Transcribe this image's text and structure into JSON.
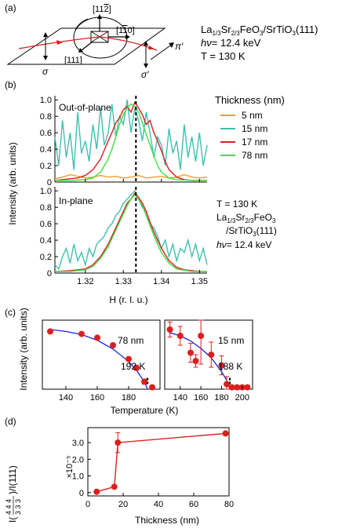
{
  "panel_labels": [
    "(a)",
    "(b)",
    "(c)",
    "(d)"
  ],
  "geometry_panel": {
    "vector_labels": [
      "[11̅2̅]",
      "[11̅0]",
      "[111]"
    ],
    "vector_label_top": "[11",
    "vector_label_top_bar": "2",
    "vector_label_top_close": "]",
    "vector_label_right_open": "[1",
    "vector_label_right_bar": "1",
    "vector_label_right_close": "0]",
    "vector_label_bottom": "[111]",
    "pol_in": "σ",
    "pol_out": "σ′",
    "pol_out_pi": "π′"
  },
  "sample_info": {
    "formula_main": "La",
    "formula_sub1": "1/3",
    "formula_mid": "Sr",
    "formula_sub2": "2/3",
    "formula_end": "FeO",
    "formula_sub3": "3",
    "formula_sub_end": "/SrTiO",
    "formula_sub4": "3",
    "formula_tail": "(111)",
    "energy_hv": "hν",
    "energy": "= 12.4 keV",
    "temperature": "T = 130 K"
  },
  "panel_b": {
    "title_oop": "Out-of-plane",
    "title_ip": "In-plane",
    "ylabel": "Intensity (arb. units)",
    "xlabel": "H (r. l. u.)",
    "legend_title": "Thickness (nm)",
    "legend": [
      "5 nm",
      "15 nm",
      "17 nm",
      "78 nm"
    ],
    "colors": {
      "5 nm": "#f0a020",
      "15 nm": "#3fbfb0",
      "17 nm": "#dd1e1e",
      "78 nm": "#44dd44"
    },
    "side_T": "T = 130 K",
    "side_energy": "= 12.4 keV"
  },
  "panel_c": {
    "ylabel": "Intensity (arb. units)",
    "xlabel": "Temperature (K)",
    "left_label": "78 nm",
    "left_tn": "192 K",
    "right_label": "15 nm",
    "right_tn": "188 K"
  },
  "panel_d": {
    "ylabel_main": "I(",
    "ylabel_frac": "4 4 4",
    "ylabel_den": "3 3 3",
    "ylabel_end": ")/I(111)",
    "scale": "×10⁻⁵",
    "xlabel": "Thickness (nm)"
  },
  "chart_data": [
    {
      "type": "line",
      "panel": "b-top",
      "title": "Out-of-plane",
      "xlabel": "H (r. l. u.)",
      "ylabel": "Intensity (arb. units)",
      "xlim": [
        1.312,
        1.352
      ],
      "ylim": [
        0,
        1.05
      ],
      "x_ticks": [
        1.32,
        1.33,
        1.34,
        1.35
      ],
      "y_ticks": [
        0,
        0.2,
        0.4,
        0.6,
        0.8,
        1.0
      ],
      "y_tick_labels": [
        "0",
        "0.2",
        "0.4",
        "0.6",
        "0.8",
        "1.0"
      ],
      "marker_x": 1.3333,
      "series": [
        {
          "name": "5 nm",
          "color": "#f0a020",
          "x": [
            1.312,
            1.314,
            1.316,
            1.318,
            1.32,
            1.322,
            1.324,
            1.326,
            1.328,
            1.33,
            1.332,
            1.334,
            1.336,
            1.338,
            1.34,
            1.342,
            1.344,
            1.346,
            1.348,
            1.35,
            1.352
          ],
          "y": [
            0.04,
            0.06,
            0.09,
            0.07,
            0.05,
            0.06,
            0.08,
            0.06,
            0.07,
            0.05,
            0.06,
            0.08,
            0.05,
            0.06,
            0.07,
            0.05,
            0.06,
            0.09,
            0.06,
            0.05,
            0.06
          ]
        },
        {
          "name": "15 nm",
          "color": "#3fbfb0",
          "x": [
            1.312,
            1.313,
            1.314,
            1.315,
            1.316,
            1.317,
            1.318,
            1.319,
            1.32,
            1.321,
            1.322,
            1.323,
            1.324,
            1.325,
            1.326,
            1.327,
            1.328,
            1.329,
            1.33,
            1.331,
            1.332,
            1.333,
            1.334,
            1.335,
            1.336,
            1.337,
            1.338,
            1.339,
            1.34,
            1.341,
            1.342,
            1.343,
            1.344,
            1.345,
            1.346,
            1.347,
            1.348,
            1.349,
            1.35,
            1.351,
            1.352
          ],
          "y": [
            0.55,
            0.2,
            0.75,
            0.3,
            0.6,
            0.15,
            0.85,
            0.35,
            0.5,
            0.25,
            0.7,
            0.4,
            0.9,
            0.45,
            0.6,
            0.95,
            0.55,
            0.8,
            0.7,
            1.0,
            0.6,
            0.9,
            0.75,
            0.5,
            0.85,
            0.6,
            0.3,
            0.55,
            0.45,
            0.2,
            0.65,
            0.35,
            0.5,
            0.15,
            0.7,
            0.3,
            0.55,
            0.25,
            0.6,
            0.2,
            0.45
          ]
        },
        {
          "name": "17 nm",
          "color": "#dd1e1e",
          "x": [
            1.312,
            1.314,
            1.316,
            1.318,
            1.32,
            1.322,
            1.324,
            1.326,
            1.327,
            1.328,
            1.329,
            1.33,
            1.331,
            1.332,
            1.333,
            1.334,
            1.335,
            1.336,
            1.337,
            1.338,
            1.339,
            1.34,
            1.341,
            1.342,
            1.344,
            1.346,
            1.348,
            1.35,
            1.352
          ],
          "y": [
            0.02,
            0.03,
            0.04,
            0.05,
            0.08,
            0.15,
            0.28,
            0.5,
            0.6,
            0.72,
            0.78,
            0.88,
            0.92,
            0.85,
            0.97,
            0.9,
            0.82,
            0.7,
            0.75,
            0.6,
            0.5,
            0.38,
            0.25,
            0.15,
            0.06,
            0.03,
            0.02,
            0.02,
            0.02
          ]
        },
        {
          "name": "78 nm",
          "color": "#44dd44",
          "x": [
            1.312,
            1.316,
            1.32,
            1.322,
            1.324,
            1.326,
            1.327,
            1.328,
            1.329,
            1.33,
            1.331,
            1.332,
            1.333,
            1.334,
            1.335,
            1.336,
            1.337,
            1.338,
            1.339,
            1.34,
            1.342,
            1.344,
            1.348,
            1.352
          ],
          "y": [
            0.02,
            0.02,
            0.03,
            0.05,
            0.12,
            0.28,
            0.4,
            0.55,
            0.7,
            0.82,
            0.9,
            0.95,
            0.92,
            0.85,
            0.72,
            0.58,
            0.45,
            0.32,
            0.2,
            0.12,
            0.05,
            0.03,
            0.02,
            0.02
          ]
        }
      ]
    },
    {
      "type": "line",
      "panel": "b-bottom",
      "title": "In-plane",
      "xlabel": "H (r. l. u.)",
      "ylabel": "Intensity (arb. units)",
      "xlim": [
        1.312,
        1.352
      ],
      "ylim": [
        0,
        1.05
      ],
      "x_ticks": [
        1.32,
        1.33,
        1.34,
        1.35
      ],
      "x_tick_labels": [
        "1.32",
        "1.33",
        "1.34",
        "1.35"
      ],
      "y_ticks": [
        0,
        0.2,
        0.4,
        0.6,
        0.8,
        1.0
      ],
      "y_tick_labels": [
        "0",
        "0.2",
        "0.4",
        "0.6",
        "0.8",
        "1.0"
      ],
      "marker_x": 1.3333,
      "series": [
        {
          "name": "15 nm",
          "color": "#3fbfb0",
          "x": [
            1.312,
            1.313,
            1.314,
            1.315,
            1.316,
            1.317,
            1.318,
            1.319,
            1.32,
            1.321,
            1.322,
            1.323,
            1.324,
            1.325,
            1.326,
            1.327,
            1.328,
            1.329,
            1.33,
            1.331,
            1.332,
            1.333,
            1.334,
            1.335,
            1.336,
            1.337,
            1.338,
            1.339,
            1.34,
            1.341,
            1.342,
            1.343,
            1.344,
            1.345,
            1.346,
            1.347,
            1.348,
            1.349,
            1.35,
            1.351,
            1.352
          ],
          "y": [
            0.1,
            0.05,
            0.2,
            0.3,
            0.12,
            0.35,
            0.15,
            0.25,
            0.1,
            0.3,
            0.2,
            0.35,
            0.4,
            0.45,
            0.55,
            0.6,
            0.7,
            0.75,
            0.85,
            0.9,
            0.95,
            1.0,
            0.9,
            0.8,
            0.75,
            0.6,
            0.55,
            0.45,
            0.3,
            0.4,
            0.2,
            0.35,
            0.15,
            0.3,
            0.25,
            0.4,
            0.2,
            0.35,
            0.15,
            0.3,
            0.1
          ]
        },
        {
          "name": "17 nm",
          "color": "#dd1e1e",
          "x": [
            1.312,
            1.316,
            1.32,
            1.322,
            1.324,
            1.326,
            1.327,
            1.328,
            1.329,
            1.33,
            1.331,
            1.332,
            1.333,
            1.334,
            1.335,
            1.336,
            1.337,
            1.338,
            1.339,
            1.34,
            1.342,
            1.344,
            1.346,
            1.35,
            1.352
          ],
          "y": [
            0.02,
            0.03,
            0.05,
            0.1,
            0.2,
            0.35,
            0.45,
            0.55,
            0.65,
            0.75,
            0.85,
            0.9,
            0.97,
            0.92,
            0.85,
            0.75,
            0.62,
            0.5,
            0.4,
            0.3,
            0.15,
            0.07,
            0.04,
            0.02,
            0.02
          ]
        },
        {
          "name": "78 nm",
          "color": "#44dd44",
          "x": [
            1.312,
            1.316,
            1.32,
            1.322,
            1.324,
            1.326,
            1.327,
            1.328,
            1.329,
            1.33,
            1.331,
            1.332,
            1.333,
            1.334,
            1.335,
            1.336,
            1.337,
            1.338,
            1.339,
            1.34,
            1.342,
            1.344,
            1.348,
            1.352
          ],
          "y": [
            0.02,
            0.02,
            0.04,
            0.08,
            0.18,
            0.32,
            0.42,
            0.52,
            0.62,
            0.72,
            0.82,
            0.9,
            0.95,
            0.9,
            0.82,
            0.7,
            0.58,
            0.46,
            0.35,
            0.25,
            0.12,
            0.05,
            0.02,
            0.02
          ]
        }
      ]
    },
    {
      "type": "scatter",
      "panel": "c-left",
      "title": "78 nm",
      "xlabel": "Temperature (K)",
      "ylabel": "Intensity (arb. units)",
      "xlim": [
        125,
        200
      ],
      "ylim": [
        0,
        1.1
      ],
      "x_ticks": [
        140,
        160,
        180
      ],
      "x_tick_labels": [
        "140",
        "160",
        "180"
      ],
      "tn": 192,
      "tn_label": "192 K",
      "series": [
        {
          "name": "data",
          "color": "#dd1e1e",
          "x": [
            130,
            150,
            160,
            170,
            180,
            185,
            190,
            195
          ],
          "y": [
            0.92,
            0.88,
            0.82,
            0.7,
            0.48,
            0.34,
            0.12,
            0.03
          ],
          "yerr": [
            0.02,
            0.02,
            0.02,
            0.03,
            0.03,
            0.04,
            0.04,
            0.03
          ]
        },
        {
          "name": "fit",
          "color": "#2020dd",
          "x": [
            130,
            140,
            150,
            160,
            170,
            180,
            185,
            190,
            192
          ],
          "y": [
            0.95,
            0.92,
            0.87,
            0.78,
            0.64,
            0.44,
            0.3,
            0.12,
            0.0
          ]
        }
      ]
    },
    {
      "type": "scatter",
      "panel": "c-right",
      "title": "15 nm",
      "xlabel": "Temperature (K)",
      "xlim": [
        125,
        210
      ],
      "ylim": [
        0,
        1.1
      ],
      "x_ticks": [
        140,
        160,
        180,
        200
      ],
      "x_tick_labels": [
        "140",
        "160",
        "180",
        "200"
      ],
      "tn": 188,
      "tn_label": "188 K",
      "series": [
        {
          "name": "data",
          "color": "#dd1e1e",
          "x": [
            130,
            140,
            150,
            155,
            160,
            170,
            180,
            185,
            190,
            195,
            200,
            205
          ],
          "y": [
            0.95,
            0.85,
            0.58,
            0.45,
            0.85,
            0.55,
            0.38,
            0.08,
            0.03,
            0.03,
            0.03,
            0.03
          ],
          "yerr": [
            0.12,
            0.15,
            0.15,
            0.1,
            0.45,
            0.2,
            0.15,
            0.12,
            0.02,
            0.02,
            0.02,
            0.02
          ]
        },
        {
          "name": "fit",
          "color": "#2020dd",
          "x": [
            130,
            140,
            150,
            160,
            170,
            180,
            185,
            188
          ],
          "y": [
            0.9,
            0.85,
            0.77,
            0.65,
            0.5,
            0.28,
            0.14,
            0.0
          ]
        }
      ]
    },
    {
      "type": "line",
      "panel": "d",
      "xlabel": "Thickness (nm)",
      "xlim": [
        0,
        80
      ],
      "ylim": [
        -0.2,
        3.9
      ],
      "x_ticks": [
        0,
        20,
        40,
        60,
        80
      ],
      "x_tick_labels": [
        "0",
        "20",
        "40",
        "60",
        "80"
      ],
      "y_ticks": [
        0,
        1.0,
        2.0,
        3.0
      ],
      "y_tick_labels": [
        "0",
        "1.0",
        "2.0",
        "3.0"
      ],
      "series": [
        {
          "name": "data",
          "color": "#dd1e1e",
          "x": [
            5,
            15,
            17,
            78
          ],
          "y": [
            0.05,
            0.35,
            3.0,
            3.55
          ],
          "yerr": [
            0,
            0,
            0.6,
            0
          ]
        }
      ]
    }
  ]
}
